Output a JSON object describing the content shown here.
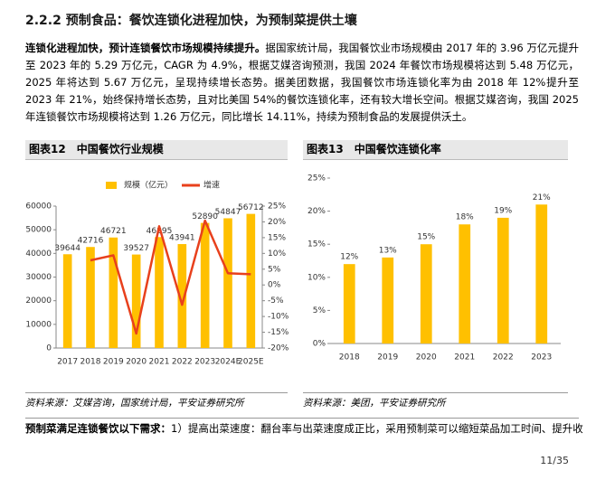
{
  "heading": "2.2.2 预制食品：餐饮连锁化进程加快，为预制菜提供土壤",
  "paragraph": {
    "lead": "连锁化进程加快，预计连锁餐饮市场规模持续提升。",
    "text": "据国家统计局，我国餐饮业市场规模由 2017 年的 3.96 万亿元提升至 2023 年的 5.29 万亿元，CAGR 为 4.9%，根据艾媒咨询预测，我国 2024 年餐饮市场规模将达到 5.48 万亿元，2025 年将达到 5.67 万亿元，呈现持续增长态势。据美团数据，我国餐饮市场连锁化率为由 2018 年 12%提升至 2023 年 21%，始终保持增长态势，且对比美国 54%的餐饮连锁化率，还有较大增长空间。根据艾媒咨询，我国 2025 年连锁餐饮市场规模将达到 1.26 万亿元，同比增长 14.11%，持续为预制食品的发展提供沃土。"
  },
  "figures": [
    {
      "label": "图表12",
      "caption": "中国餐饮行业规模",
      "source": "资料来源：艾媒咨询，国家统计局，平安证券研究所"
    },
    {
      "label": "图表13",
      "caption": "中国餐饮连锁化率",
      "source": "资料来源：美团，平安证券研究所"
    }
  ],
  "chart_data": [
    {
      "type": "bar",
      "categories": [
        "2017",
        "2018",
        "2019",
        "2020",
        "2021",
        "2022",
        "2023",
        "2024E",
        "2025E"
      ],
      "series": [
        {
          "name": "规模（亿元）",
          "color": "#FFC000",
          "values": [
            39644,
            42716,
            46721,
            39527,
            46895,
            43941,
            52890,
            54847,
            56712
          ]
        },
        {
          "name": "增速",
          "color": "#E8401C",
          "type": "line",
          "axis": "y2",
          "values": [
            null,
            7.8,
            9.4,
            -15.4,
            18.6,
            -6.3,
            20.4,
            3.7,
            3.4
          ]
        }
      ],
      "show_values": true,
      "legend": "top",
      "ylim": [
        0,
        60000
      ],
      "yticks": [
        0,
        10000,
        20000,
        30000,
        40000,
        50000,
        60000
      ],
      "y2lim": [
        -20,
        25
      ],
      "y2ticks": [
        {
          "value": -20,
          "label": "-20%"
        },
        {
          "value": -15,
          "label": "-15%"
        },
        {
          "value": -10,
          "label": "-10%"
        },
        {
          "value": -5,
          "label": "-5%"
        },
        {
          "value": 0,
          "label": "0%"
        },
        {
          "value": 5,
          "label": "5%"
        },
        {
          "value": 10,
          "label": "10%"
        },
        {
          "value": 15,
          "label": "15%"
        },
        {
          "value": 20,
          "label": "20%"
        },
        {
          "value": 25,
          "label": "25%"
        }
      ]
    },
    {
      "type": "bar",
      "categories": [
        "2018",
        "2019",
        "2020",
        "2021",
        "2022",
        "2023"
      ],
      "values": [
        12,
        13,
        15,
        18,
        19,
        21
      ],
      "value_labels": [
        "12%",
        "13%",
        "15%",
        "18%",
        "19%",
        "21%"
      ],
      "color": "#FFC000",
      "ylim": [
        0,
        25
      ],
      "yticks": [
        {
          "value": 0,
          "label": "0%"
        },
        {
          "value": 5,
          "label": "5%"
        },
        {
          "value": 10,
          "label": "10%"
        },
        {
          "value": 15,
          "label": "15%"
        },
        {
          "value": 20,
          "label": "20%"
        },
        {
          "value": 25,
          "label": "25%"
        }
      ]
    }
  ],
  "bottom_paragraph": {
    "lead": "预制菜满足连锁餐饮以下需求：",
    "text": "1）提高出菜速度：翻台率与出菜速度成正比，采用预制菜可以缩短菜品加工时间、提升收"
  },
  "page_number": "11/35"
}
